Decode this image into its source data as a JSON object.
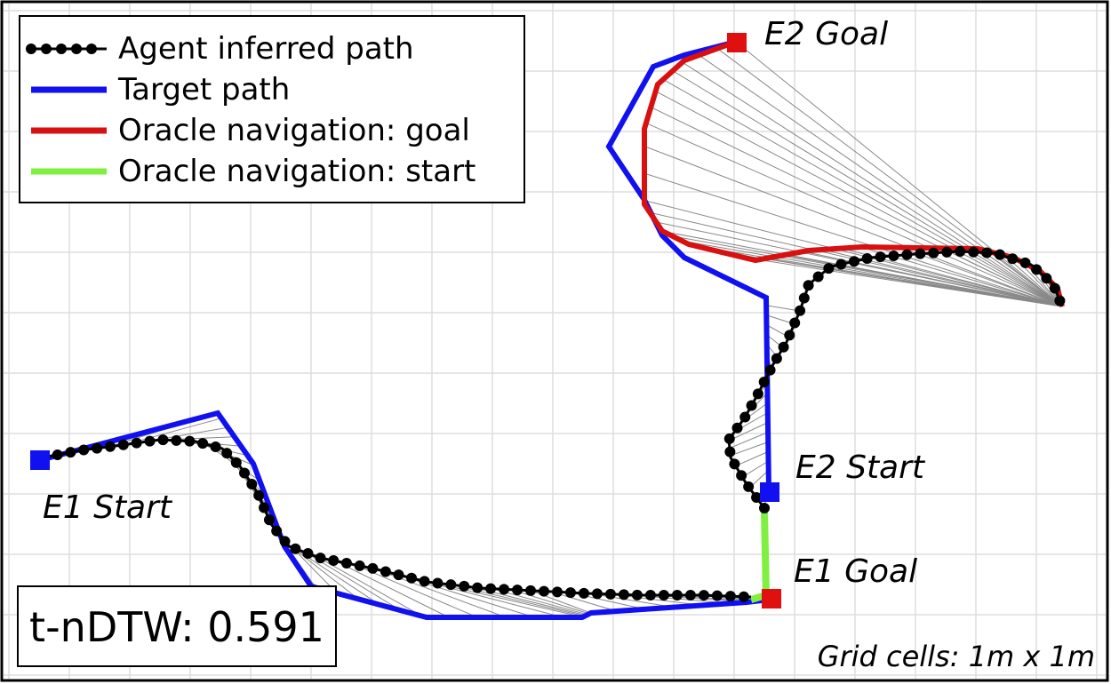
{
  "legend": [
    {
      "label": "Agent inferred path"
    },
    {
      "label": "Target path"
    },
    {
      "label": "Oracle navigation: goal"
    },
    {
      "label": "Oracle navigation: start"
    }
  ],
  "labels": {
    "e2_goal": "E2 Goal",
    "e2_start": "E2 Start",
    "e1_start": "E1 Start",
    "e1_goal": "E1 Goal"
  },
  "metric": "t-nDTW: 0.591",
  "grid_note": "Grid cells: 1m x 1m"
}
